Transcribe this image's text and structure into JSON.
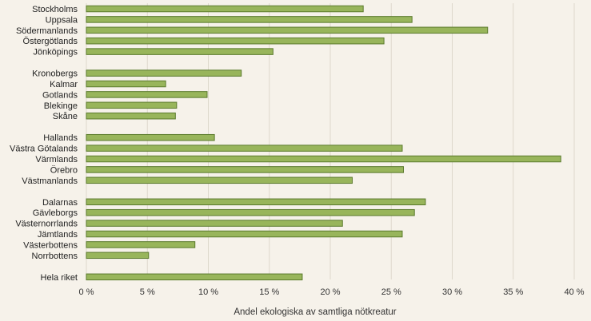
{
  "chart_data": {
    "type": "bar",
    "orientation": "horizontal",
    "title": "",
    "xlabel": "Andel ekologiska av samtliga nötkreatur",
    "ylabel": "",
    "xlim": [
      0,
      40
    ],
    "x_ticks": [
      0,
      5,
      10,
      15,
      20,
      25,
      30,
      35,
      40
    ],
    "x_tick_labels": [
      "0 %",
      "5 %",
      "10 %",
      "15 %",
      "20 %",
      "25 %",
      "30 %",
      "35 %",
      "40 %"
    ],
    "grid": "vertical",
    "bar_color": "#98b55b",
    "bar_edge_color": "#5a7a2c",
    "groups": [
      [
        "Stockholms",
        "Uppsala",
        "Södermanlands",
        "Östergötlands",
        "Jönköpings"
      ],
      [
        "Kronobergs",
        "Kalmar",
        "Gotlands",
        "Blekinge",
        "Skåne"
      ],
      [
        "Hallands",
        "Västra Götalands",
        "Värmlands",
        "Örebro",
        "Västmanlands"
      ],
      [
        "Dalarnas",
        "Gävleborgs",
        "Västernorrlands",
        "Jämtlands",
        "Västerbottens",
        "Norrbottens"
      ],
      [
        "Hela riket"
      ]
    ],
    "categories": [
      "Stockholms",
      "Uppsala",
      "Södermanlands",
      "Östergötlands",
      "Jönköpings",
      "Kronobergs",
      "Kalmar",
      "Gotlands",
      "Blekinge",
      "Skåne",
      "Hallands",
      "Västra Götalands",
      "Värmlands",
      "Örebro",
      "Västmanlands",
      "Dalarnas",
      "Gävleborgs",
      "Västernorrlands",
      "Jämtlands",
      "Västerbottens",
      "Norrbottens",
      "Hela riket"
    ],
    "values": [
      22.7,
      26.7,
      32.9,
      24.4,
      15.3,
      12.7,
      6.5,
      9.9,
      7.4,
      7.3,
      10.5,
      25.9,
      38.9,
      26.0,
      21.8,
      27.8,
      26.9,
      21.0,
      25.9,
      8.9,
      5.1,
      17.7
    ]
  }
}
